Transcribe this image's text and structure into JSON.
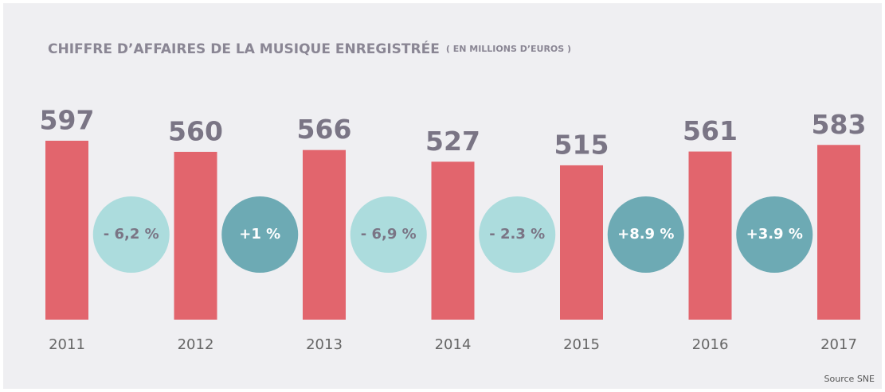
{
  "chart_data": {
    "type": "bar",
    "title": "CHIFFRE D’AFFAIRES DE LA MUSIQUE ENREGISTRÉE",
    "subtitle": "( EN MILLIONS D’EUROS )",
    "source": "Source SNE",
    "categories": [
      "2011",
      "2012",
      "2013",
      "2014",
      "2015",
      "2016",
      "2017"
    ],
    "values": [
      597,
      560,
      566,
      527,
      515,
      561,
      583
    ],
    "color": "#e2656d",
    "changes": [
      {
        "value": -6.2,
        "label": "- 6,2 %"
      },
      {
        "value": 1,
        "label": "+1 %"
      },
      {
        "value": -6.9,
        "label": "- 6,9 %"
      },
      {
        "value": -2.3,
        "label": "- 2.3 %"
      },
      {
        "value": 8.9,
        "label": "+8.9 %"
      },
      {
        "value": 3.9,
        "label": "+3.9 %"
      }
    ],
    "negative_color": "#acdcdd",
    "positive_color": "#6daab4"
  }
}
